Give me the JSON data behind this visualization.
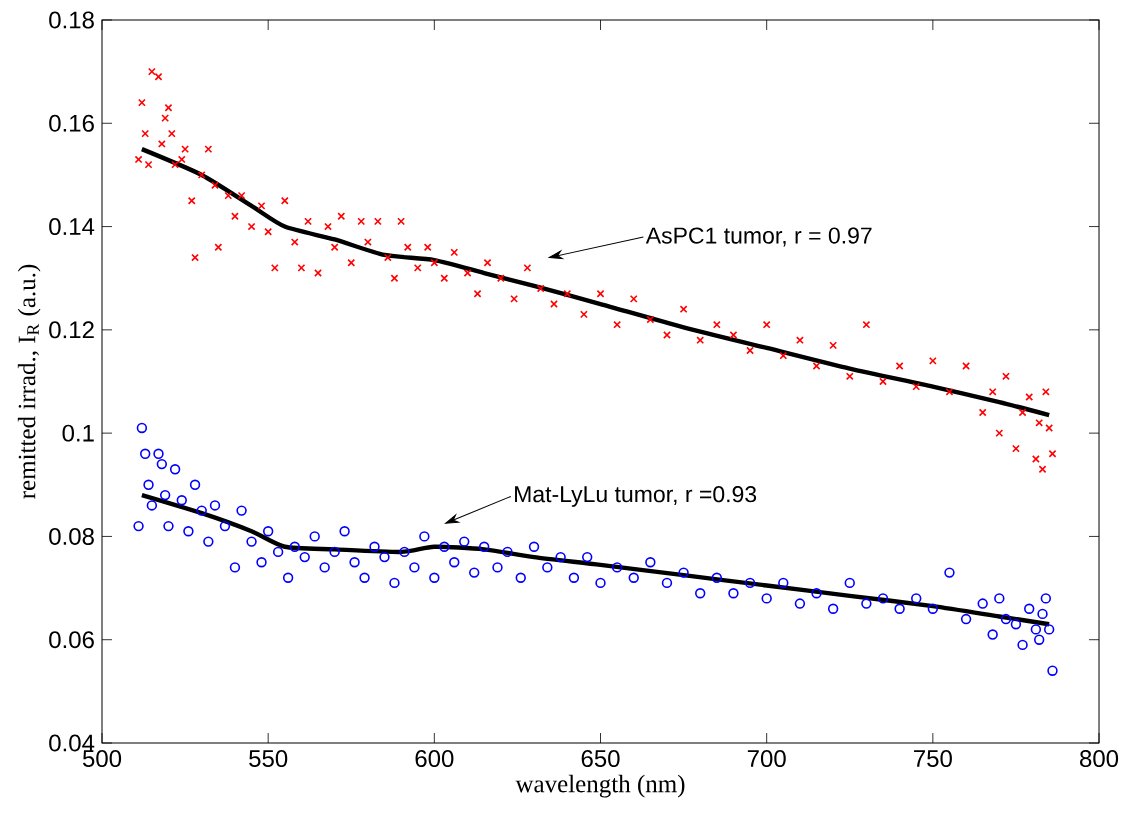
{
  "chart_data": {
    "type": "scatter",
    "xlabel": "wavelength (nm)",
    "ylabel": "remitted irrad., I$_{R}$ (a.u.)",
    "xlim": [
      500,
      800
    ],
    "ylim": [
      0.04,
      0.18
    ],
    "xticks": [
      500,
      550,
      600,
      650,
      700,
      750,
      800
    ],
    "yticks": [
      0.04,
      0.06,
      0.08,
      0.1,
      0.12,
      0.14,
      0.16,
      0.18
    ],
    "annotations": [
      "AsPC1 tumor, r = 0.97",
      "Mat-LyLu tumor, r =0.93"
    ],
    "series": [
      {
        "marker": "cross",
        "color": "#ff0000",
        "x": [
          511,
          512,
          513,
          514,
          515,
          517,
          518,
          519,
          520,
          521,
          522,
          524,
          525,
          527,
          528,
          530,
          532,
          534,
          535,
          538,
          540,
          542,
          545,
          548,
          550,
          552,
          555,
          558,
          560,
          562,
          565,
          568,
          570,
          572,
          575,
          578,
          580,
          583,
          586,
          588,
          590,
          592,
          595,
          598,
          600,
          603,
          606,
          610,
          613,
          616,
          620,
          624,
          628,
          632,
          636,
          640,
          645,
          650,
          655,
          660,
          665,
          670,
          675,
          680,
          685,
          690,
          695,
          700,
          705,
          710,
          715,
          720,
          725,
          730,
          735,
          740,
          745,
          750,
          755,
          760,
          765,
          768,
          770,
          772,
          775,
          777,
          779,
          781,
          782,
          783,
          784,
          785,
          786
        ],
        "values": [
          0.153,
          0.164,
          0.158,
          0.152,
          0.17,
          0.169,
          0.156,
          0.161,
          0.163,
          0.158,
          0.152,
          0.153,
          0.155,
          0.145,
          0.134,
          0.15,
          0.155,
          0.148,
          0.136,
          0.146,
          0.142,
          0.146,
          0.14,
          0.144,
          0.139,
          0.132,
          0.145,
          0.137,
          0.132,
          0.141,
          0.131,
          0.14,
          0.136,
          0.142,
          0.133,
          0.141,
          0.137,
          0.141,
          0.134,
          0.13,
          0.141,
          0.136,
          0.132,
          0.136,
          0.133,
          0.13,
          0.135,
          0.131,
          0.127,
          0.133,
          0.13,
          0.126,
          0.132,
          0.128,
          0.125,
          0.127,
          0.123,
          0.127,
          0.121,
          0.126,
          0.122,
          0.119,
          0.124,
          0.118,
          0.121,
          0.119,
          0.116,
          0.121,
          0.115,
          0.118,
          0.113,
          0.117,
          0.111,
          0.121,
          0.11,
          0.113,
          0.109,
          0.114,
          0.108,
          0.113,
          0.104,
          0.108,
          0.1,
          0.111,
          0.097,
          0.104,
          0.107,
          0.095,
          0.102,
          0.093,
          0.108,
          0.101,
          0.096
        ]
      },
      {
        "marker": "circle",
        "color": "#0000ff",
        "x": [
          511,
          512,
          513,
          514,
          515,
          517,
          518,
          519,
          520,
          522,
          524,
          526,
          528,
          530,
          532,
          534,
          537,
          540,
          542,
          545,
          548,
          550,
          553,
          556,
          558,
          561,
          564,
          567,
          570,
          573,
          576,
          579,
          582,
          585,
          588,
          591,
          594,
          597,
          600,
          603,
          606,
          609,
          612,
          615,
          619,
          622,
          626,
          630,
          634,
          638,
          642,
          646,
          650,
          655,
          660,
          665,
          670,
          675,
          680,
          685,
          690,
          695,
          700,
          705,
          710,
          715,
          720,
          725,
          730,
          735,
          740,
          745,
          750,
          755,
          760,
          765,
          768,
          770,
          772,
          775,
          777,
          779,
          781,
          782,
          783,
          784,
          785,
          786
        ],
        "values": [
          0.082,
          0.101,
          0.096,
          0.09,
          0.086,
          0.096,
          0.094,
          0.088,
          0.082,
          0.093,
          0.087,
          0.081,
          0.09,
          0.085,
          0.079,
          0.086,
          0.082,
          0.074,
          0.085,
          0.079,
          0.075,
          0.081,
          0.077,
          0.072,
          0.078,
          0.076,
          0.08,
          0.074,
          0.077,
          0.081,
          0.075,
          0.072,
          0.078,
          0.076,
          0.071,
          0.077,
          0.074,
          0.08,
          0.072,
          0.078,
          0.075,
          0.079,
          0.073,
          0.078,
          0.074,
          0.077,
          0.072,
          0.078,
          0.074,
          0.076,
          0.072,
          0.076,
          0.071,
          0.074,
          0.072,
          0.075,
          0.071,
          0.073,
          0.069,
          0.072,
          0.069,
          0.071,
          0.068,
          0.071,
          0.067,
          0.069,
          0.066,
          0.071,
          0.067,
          0.068,
          0.066,
          0.068,
          0.066,
          0.073,
          0.064,
          0.067,
          0.061,
          0.068,
          0.064,
          0.063,
          0.059,
          0.066,
          0.062,
          0.06,
          0.065,
          0.068,
          0.062,
          0.054
        ]
      },
      {
        "type": "line",
        "line_style": "solid",
        "color": "#000000",
        "x": [
          512,
          530,
          545,
          555,
          570,
          585,
          600,
          615,
          630,
          650,
          675,
          700,
          725,
          750,
          770,
          785
        ],
        "values": [
          0.155,
          0.15,
          0.144,
          0.14,
          0.1375,
          0.1345,
          0.1335,
          0.131,
          0.1285,
          0.125,
          0.1205,
          0.1165,
          0.1125,
          0.109,
          0.106,
          0.1035
        ]
      },
      {
        "type": "line",
        "line_style": "solid",
        "color": "#000000",
        "x": [
          512,
          530,
          545,
          555,
          570,
          590,
          600,
          615,
          630,
          650,
          675,
          700,
          725,
          750,
          770,
          785
        ],
        "values": [
          0.088,
          0.0845,
          0.081,
          0.078,
          0.0775,
          0.077,
          0.078,
          0.0775,
          0.076,
          0.0745,
          0.0725,
          0.0705,
          0.0685,
          0.0665,
          0.0645,
          0.063
        ]
      }
    ]
  }
}
